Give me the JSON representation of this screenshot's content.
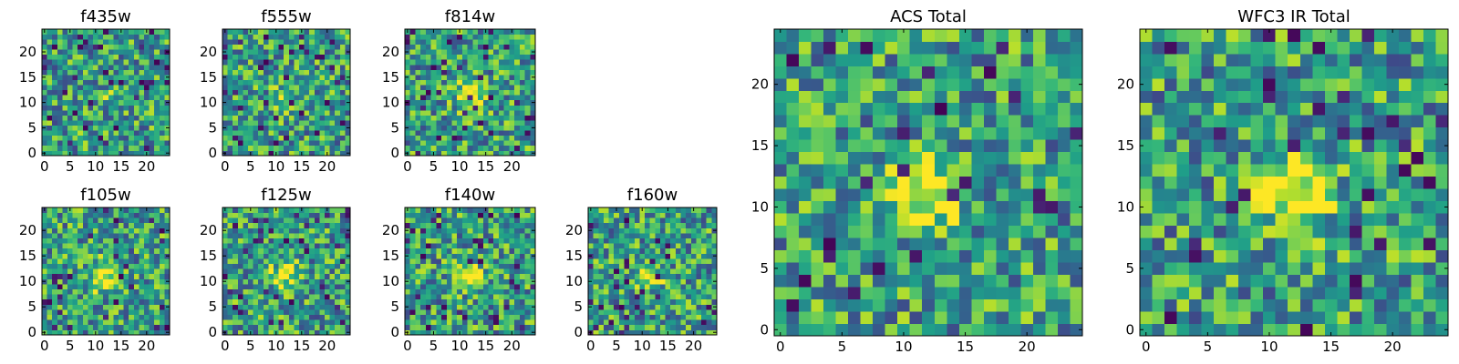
{
  "chart_data": {
    "type": "heatmap",
    "colormap": "viridis",
    "grid_size": 25,
    "panels": [
      {
        "id": "f435w",
        "title": "f435w",
        "x_ticks": [
          "0",
          "5",
          "10",
          "15",
          "20"
        ],
        "y_ticks": [
          "0",
          "5",
          "10",
          "15",
          "20"
        ],
        "seed": 11,
        "peak": 0.1
      },
      {
        "id": "f555w",
        "title": "f555w",
        "x_ticks": [
          "0",
          "5",
          "10",
          "15",
          "20"
        ],
        "y_ticks": [
          "0",
          "5",
          "10",
          "15",
          "20"
        ],
        "seed": 23,
        "peak": 0.2
      },
      {
        "id": "f814w",
        "title": "f814w",
        "x_ticks": [
          "0",
          "5",
          "10",
          "15",
          "20"
        ],
        "y_ticks": [
          "0",
          "5",
          "10",
          "15",
          "20"
        ],
        "seed": 37,
        "peak": 0.45
      },
      {
        "id": "f105w",
        "title": "f105w",
        "x_ticks": [
          "0",
          "5",
          "10",
          "15",
          "20"
        ],
        "y_ticks": [
          "0",
          "5",
          "10",
          "15",
          "20"
        ],
        "seed": 41,
        "peak": 0.5
      },
      {
        "id": "f125w",
        "title": "f125w",
        "x_ticks": [
          "0",
          "5",
          "10",
          "15",
          "20"
        ],
        "y_ticks": [
          "0",
          "5",
          "10",
          "15",
          "20"
        ],
        "seed": 53,
        "peak": 0.4
      },
      {
        "id": "f140w",
        "title": "f140w",
        "x_ticks": [
          "0",
          "5",
          "10",
          "15",
          "20"
        ],
        "y_ticks": [
          "0",
          "5",
          "10",
          "15",
          "20"
        ],
        "seed": 67,
        "peak": 0.4
      },
      {
        "id": "f160w",
        "title": "f160w",
        "x_ticks": [
          "0",
          "5",
          "10",
          "15",
          "20"
        ],
        "y_ticks": [
          "0",
          "5",
          "10",
          "15",
          "20"
        ],
        "seed": 79,
        "peak": 0.3
      },
      {
        "id": "acs-total",
        "title": "ACS Total",
        "x_ticks": [
          "0",
          "5",
          "10",
          "15",
          "20"
        ],
        "y_ticks": [
          "0",
          "5",
          "10",
          "15",
          "20"
        ],
        "seed": 83,
        "peak": 0.5
      },
      {
        "id": "wfc3-ir-total",
        "title": "WFC3 IR Total",
        "x_ticks": [
          "0",
          "5",
          "10",
          "15",
          "20"
        ],
        "y_ticks": [
          "0",
          "5",
          "10",
          "15",
          "20"
        ],
        "seed": 97,
        "peak": 0.6
      }
    ],
    "xlim": [
      -0.5,
      24.5
    ],
    "ylim": [
      -0.5,
      24.5
    ],
    "source_center": [
      12,
      11
    ]
  }
}
